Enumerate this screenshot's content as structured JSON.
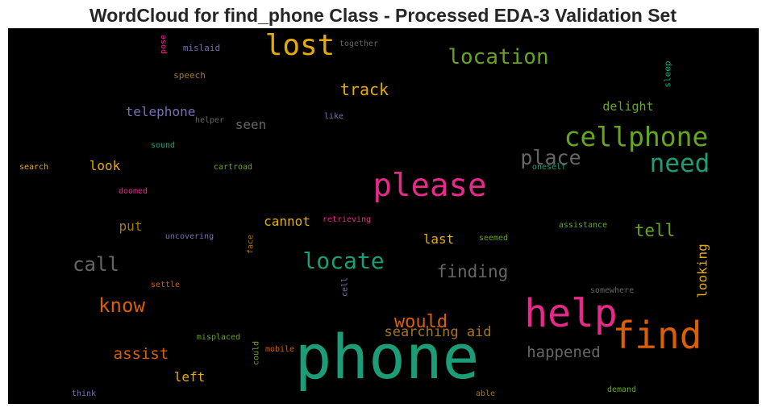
{
  "title": "WordCloud for find_phone Class - Processed EDA-3 Validation Set",
  "chart_data": {
    "type": "wordcloud",
    "background": "#000000",
    "words": [
      {
        "text": "phone",
        "weight": 1.0,
        "color": "#1b9e77"
      },
      {
        "text": "help",
        "weight": 0.73,
        "color": "#e7298a"
      },
      {
        "text": "find",
        "weight": 0.7,
        "color": "#d95f02"
      },
      {
        "text": "please",
        "weight": 0.6,
        "color": "#e7298a"
      },
      {
        "text": "lost",
        "weight": 0.55,
        "color": "#e6ab02"
      },
      {
        "text": "cellphone",
        "weight": 0.5,
        "color": "#66a61e"
      },
      {
        "text": "need",
        "weight": 0.47,
        "color": "#1b9e77"
      },
      {
        "text": "locate",
        "weight": 0.43,
        "color": "#1b9e77"
      },
      {
        "text": "location",
        "weight": 0.4,
        "color": "#66a61e"
      },
      {
        "text": "place",
        "weight": 0.38,
        "color": "#666666"
      },
      {
        "text": "call",
        "weight": 0.37,
        "color": "#666666"
      },
      {
        "text": "know",
        "weight": 0.37,
        "color": "#d95f02"
      },
      {
        "text": "would",
        "weight": 0.34,
        "color": "#d95f02"
      },
      {
        "text": "finding",
        "weight": 0.33,
        "color": "#666666"
      },
      {
        "text": "tell",
        "weight": 0.33,
        "color": "#66a61e"
      },
      {
        "text": "track",
        "weight": 0.31,
        "color": "#e6ab02"
      },
      {
        "text": "happened",
        "weight": 0.3,
        "color": "#666666"
      },
      {
        "text": "assist",
        "weight": 0.29,
        "color": "#d95f02"
      },
      {
        "text": "searching aid",
        "weight": 0.26,
        "color": "#a6761d"
      },
      {
        "text": "telephone",
        "weight": 0.26,
        "color": "#7570b3"
      },
      {
        "text": "seen",
        "weight": 0.24,
        "color": "#666666"
      },
      {
        "text": "cannot",
        "weight": 0.24,
        "color": "#e6ab02"
      },
      {
        "text": "last",
        "weight": 0.23,
        "color": "#e6ab02"
      },
      {
        "text": "looking",
        "weight": 0.23,
        "color": "#e6ab02"
      },
      {
        "text": "delight",
        "weight": 0.23,
        "color": "#66a61e"
      },
      {
        "text": "look",
        "weight": 0.23,
        "color": "#e6ab02"
      },
      {
        "text": "put",
        "weight": 0.23,
        "color": "#a6761d"
      },
      {
        "text": "left",
        "weight": 0.22,
        "color": "#e6ab02"
      },
      {
        "text": "sleep",
        "weight": 0.18,
        "color": "#1b9e77"
      },
      {
        "text": "mislaid",
        "weight": 0.17,
        "color": "#7570b3"
      },
      {
        "text": "speech",
        "weight": 0.16,
        "color": "#a6761d"
      },
      {
        "text": "together",
        "weight": 0.15,
        "color": "#666666"
      },
      {
        "text": "pose",
        "weight": 0.15,
        "color": "#e7298a"
      },
      {
        "text": "helper",
        "weight": 0.15,
        "color": "#666666"
      },
      {
        "text": "like",
        "weight": 0.15,
        "color": "#7570b3"
      },
      {
        "text": "sound",
        "weight": 0.15,
        "color": "#1b9e77"
      },
      {
        "text": "search",
        "weight": 0.15,
        "color": "#e6ab02"
      },
      {
        "text": "cartroad",
        "weight": 0.15,
        "color": "#66a61e"
      },
      {
        "text": "oneself",
        "weight": 0.15,
        "color": "#1b9e77"
      },
      {
        "text": "doomed",
        "weight": 0.15,
        "color": "#e7298a"
      },
      {
        "text": "retrieving",
        "weight": 0.15,
        "color": "#e7298a"
      },
      {
        "text": "assistance",
        "weight": 0.15,
        "color": "#66a61e"
      },
      {
        "text": "uncovering",
        "weight": 0.15,
        "color": "#7570b3"
      },
      {
        "text": "face",
        "weight": 0.15,
        "color": "#a6761d"
      },
      {
        "text": "seemed",
        "weight": 0.15,
        "color": "#66a61e"
      },
      {
        "text": "settle",
        "weight": 0.15,
        "color": "#d95f02"
      },
      {
        "text": "cell",
        "weight": 0.15,
        "color": "#7570b3"
      },
      {
        "text": "somewhere",
        "weight": 0.15,
        "color": "#666666"
      },
      {
        "text": "misplaced",
        "weight": 0.15,
        "color": "#66a61e"
      },
      {
        "text": "mobile",
        "weight": 0.15,
        "color": "#d95f02"
      },
      {
        "text": "could",
        "weight": 0.15,
        "color": "#66a61e"
      },
      {
        "text": "think",
        "weight": 0.15,
        "color": "#7570b3"
      },
      {
        "text": "able",
        "weight": 0.15,
        "color": "#a6761d"
      },
      {
        "text": "demand",
        "weight": 0.15,
        "color": "#66a61e"
      }
    ]
  }
}
